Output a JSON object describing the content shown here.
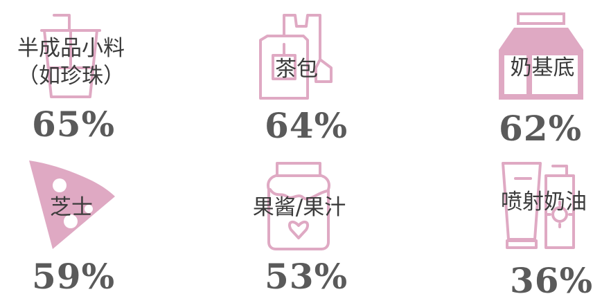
{
  "colors": {
    "icon": "#dfa9c3",
    "label": "#3b3b3b",
    "percent": "#5a5a5a"
  },
  "chart_data": {
    "type": "table",
    "items": [
      {
        "label": "半成品小料",
        "sublabel": "（如珍珠）",
        "value": 65,
        "display": "65%",
        "icon": "bubble-tea-cup-icon"
      },
      {
        "label": "茶包",
        "value": 64,
        "display": "64%",
        "icon": "tea-bag-icon"
      },
      {
        "label": "奶基底",
        "value": 62,
        "display": "62%",
        "icon": "milk-carton-icon"
      },
      {
        "label": "芝士",
        "value": 59,
        "display": "59%",
        "icon": "cheese-icon"
      },
      {
        "label": "果酱/果汁",
        "value": 53,
        "display": "53%",
        "icon": "jam-jar-icon"
      },
      {
        "label": "喷射奶油",
        "value": 36,
        "display": "36%",
        "icon": "cream-tube-icon"
      }
    ]
  }
}
